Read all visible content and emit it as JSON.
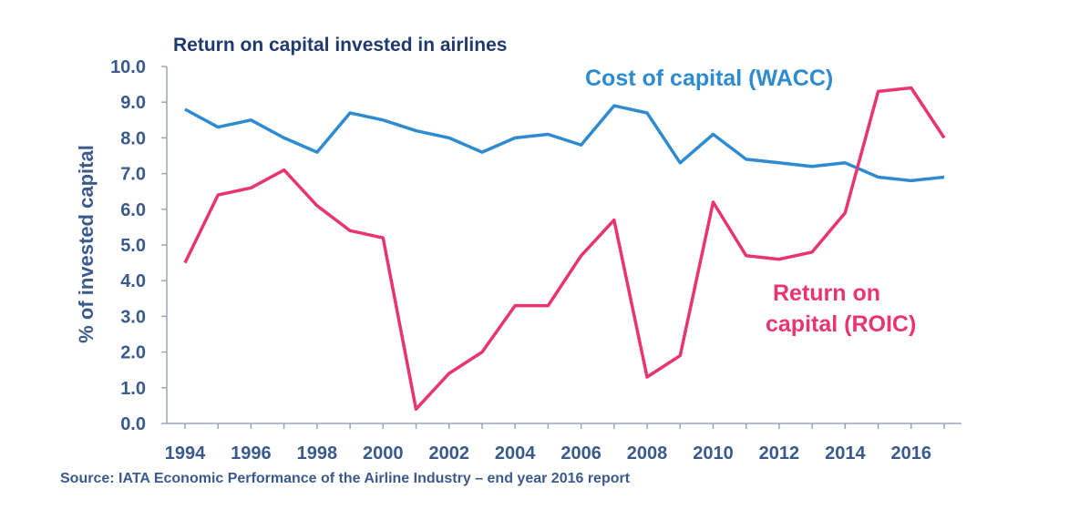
{
  "chart_data": {
    "type": "line",
    "title": "Return on capital invested in airlines",
    "ylabel": "% of invested capital",
    "xlabel": "",
    "ylim": [
      0,
      10
    ],
    "xlim": [
      1994,
      2016
    ],
    "yticks": [
      "0.0",
      "1.0",
      "2.0",
      "3.0",
      "4.0",
      "5.0",
      "6.0",
      "7.0",
      "8.0",
      "9.0",
      "10.0"
    ],
    "xticks": [
      "1994",
      "1996",
      "1998",
      "2000",
      "2002",
      "2004",
      "2006",
      "2008",
      "2010",
      "2012",
      "2014",
      "2016"
    ],
    "x": [
      1994,
      1995,
      1996,
      1997,
      1998,
      1999,
      2000,
      2001,
      2002,
      2003,
      2004,
      2005,
      2006,
      2007,
      2008,
      2009,
      2010,
      2011,
      2012,
      2013,
      2014,
      2015,
      2016,
      2017
    ],
    "series": [
      {
        "name": "Cost of capital (WACC)",
        "color": "#2e8bd0",
        "values": [
          8.8,
          8.3,
          8.5,
          8.0,
          7.6,
          8.7,
          8.5,
          8.2,
          8.0,
          7.6,
          8.0,
          8.1,
          7.8,
          8.9,
          8.7,
          7.3,
          8.1,
          7.4,
          7.3,
          7.2,
          7.3,
          6.9,
          6.8,
          6.9
        ]
      },
      {
        "name": "Return on capital (ROIC)",
        "color": "#e83570",
        "values": [
          4.5,
          6.4,
          6.6,
          7.1,
          6.1,
          5.4,
          5.2,
          0.4,
          1.4,
          2.0,
          3.3,
          3.3,
          4.7,
          5.7,
          1.3,
          1.9,
          6.2,
          4.7,
          4.6,
          4.8,
          5.9,
          9.3,
          9.4,
          8.0
        ]
      }
    ],
    "grid": false,
    "legend": "inline labels",
    "labels": {
      "wacc": "Cost of capital (WACC)",
      "roic_line1": "Return on",
      "roic_line2": "capital (ROIC)"
    }
  },
  "source": "Source: IATA Economic Performance of the Airline Industry – end year 2016 report"
}
